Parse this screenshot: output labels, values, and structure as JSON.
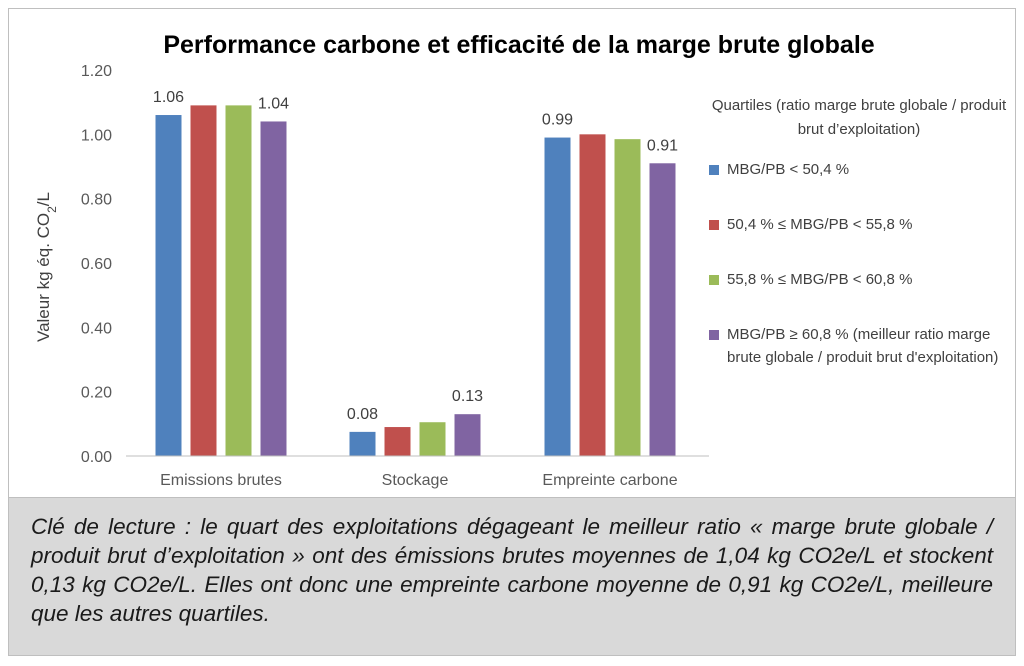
{
  "caption": "Clé de lecture : le quart des exploitations dégageant le meilleur ratio « marge brute globale / produit brut d’exploitation » ont des émissions brutes moyennes de 1,04 kg CO2e/L et stockent 0,13 kg CO2e/L. Elles ont donc une empreinte carbone moyenne de 0,91 kg CO2e/L, meilleure que les autres quartiles.",
  "chart_data": {
    "type": "bar",
    "title": "Performance carbone et efficacité de la marge brute globale",
    "ylabel_prefix": "Valeur kg éq. CO",
    "ylabel_sub": "2",
    "ylabel_suffix": "/L",
    "ylim": [
      0,
      1.2
    ],
    "yticks": [
      "0.00",
      "0.20",
      "0.40",
      "0.60",
      "0.80",
      "1.00",
      "1.20"
    ],
    "grid": false,
    "legend_position": "right",
    "legend_title": "Quartiles (ratio marge brute globale / produit brut d’exploitation)",
    "categories": [
      "Emissions brutes",
      "Stockage",
      "Empreinte carbone"
    ],
    "series": [
      {
        "name": "MBG/PB < 50,4 %",
        "color": "#4f81bd",
        "values": [
          1.06,
          0.075,
          0.99
        ],
        "labels": [
          "1.06",
          "0.08",
          "0.99"
        ]
      },
      {
        "name": "50,4 % ≤ MBG/PB < 55,8 %",
        "color": "#c0504d",
        "values": [
          1.09,
          0.09,
          1.0
        ],
        "labels": [
          "",
          "",
          ""
        ]
      },
      {
        "name": "55,8 % ≤ MBG/PB < 60,8 %",
        "color": "#9bbb59",
        "values": [
          1.09,
          0.105,
          0.985
        ],
        "labels": [
          "",
          "",
          ""
        ]
      },
      {
        "name": "MBG/PB ≥ 60,8 % (meilleur ratio marge brute globale / produit brut d'exploitation)",
        "color": "#8064a2",
        "values": [
          1.04,
          0.13,
          0.91
        ],
        "labels": [
          "1.04",
          "0.13",
          "0.91"
        ]
      }
    ]
  }
}
